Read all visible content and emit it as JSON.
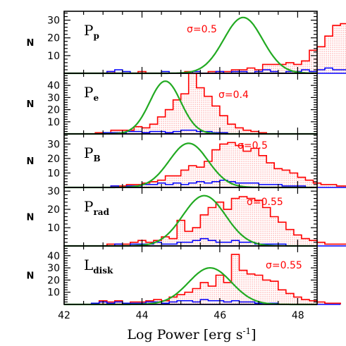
{
  "figure": {
    "xlabel": "Log Power [erg s",
    "xlabel_sup": "-1",
    "xlabel_tail": "]",
    "ylabel": "N",
    "x_tick_labels": [
      "42",
      "44",
      "46",
      "48"
    ],
    "colors": {
      "all_sources": "#ff0000",
      "subsample": "#0000ff",
      "gaussian_fit": "#22aa22",
      "fill": "#ffb0b0",
      "sigma_text": "#ff0000"
    }
  },
  "chart_data": [
    {
      "type": "histogram",
      "panel_label": "P",
      "panel_label_sub": "p",
      "sigma_text": "σ=0.5",
      "xlim": [
        42,
        48.5
      ],
      "ylim": [
        0,
        35
      ],
      "bin_width": 0.2,
      "y_ticks": [
        10,
        20,
        30
      ],
      "y_tick_labels": [
        "10",
        "20",
        "30"
      ],
      "red_hist": {
        "start": 42.9,
        "counts": [
          0,
          1,
          0,
          0,
          0,
          1,
          0,
          0,
          0,
          0,
          0,
          1,
          0,
          0,
          1,
          1,
          1,
          2,
          2,
          3,
          2,
          5,
          5,
          5,
          6,
          5,
          7,
          13,
          15,
          21,
          27,
          28,
          29,
          25,
          23,
          15,
          10,
          7,
          4,
          3,
          2,
          1,
          1
        ]
      },
      "blue_hist": {
        "start": 42.9,
        "counts": [
          0,
          1,
          2,
          1,
          0,
          0,
          0,
          0,
          1,
          0,
          0,
          0,
          1,
          0,
          0,
          1,
          0,
          1,
          1,
          0,
          1,
          2,
          1,
          0,
          1,
          1,
          2,
          1,
          2,
          3,
          2,
          2,
          3,
          3,
          2,
          1,
          1,
          1,
          1,
          1,
          0,
          0,
          0
        ]
      },
      "gaussian": {
        "mu": 46.6,
        "sigma": 0.5,
        "amp": 31.5
      }
    },
    {
      "type": "histogram",
      "panel_label": "P",
      "panel_label_sub": "e",
      "sigma_text": "σ=0.4",
      "xlim": [
        42,
        48.5
      ],
      "ylim": [
        0,
        50
      ],
      "bin_width": 0.2,
      "y_ticks": [
        10,
        20,
        30,
        40
      ],
      "y_tick_labels": [
        "10",
        "20",
        "30",
        "40"
      ],
      "red_hist": {
        "start": 42.6,
        "counts": [
          0,
          1,
          1,
          3,
          3,
          3,
          6,
          5,
          8,
          14,
          20,
          28,
          33,
          50,
          38,
          31,
          23,
          15,
          8,
          5,
          3,
          2,
          1
        ]
      },
      "blue_hist": {
        "start": 42.6,
        "counts": [
          0,
          0,
          1,
          1,
          1,
          2,
          2,
          1,
          2,
          2,
          1,
          2,
          3,
          3,
          2,
          2,
          1,
          1,
          0,
          0,
          0,
          0,
          0
        ]
      },
      "gaussian": {
        "mu": 44.6,
        "sigma": 0.4,
        "amp": 43.5
      }
    },
    {
      "type": "histogram",
      "panel_label": "P",
      "panel_label_sub": "B",
      "sigma_text": "σ=0.5",
      "xlim": [
        42,
        48.5
      ],
      "ylim": [
        0,
        37
      ],
      "bin_width": 0.2,
      "y_ticks": [
        10,
        20,
        30
      ],
      "y_tick_labels": [
        "10",
        "20",
        "30"
      ],
      "red_hist": {
        "start": 43.2,
        "counts": [
          1,
          1,
          2,
          2,
          3,
          4,
          5,
          8,
          8,
          12,
          15,
          14,
          18,
          26,
          30,
          31,
          29,
          25,
          27,
          22,
          17,
          13,
          12,
          10,
          7,
          5,
          3,
          2,
          2,
          1,
          1,
          1,
          0
        ]
      },
      "blue_hist": {
        "start": 43.2,
        "counts": [
          1,
          0,
          1,
          1,
          2,
          2,
          3,
          2,
          3,
          2,
          3,
          4,
          3,
          4,
          5,
          4,
          3,
          3,
          3,
          2,
          2,
          2,
          1,
          1,
          1,
          0,
          0,
          0,
          0,
          0,
          0,
          0,
          0
        ]
      },
      "gaussian": {
        "mu": 45.2,
        "sigma": 0.5,
        "amp": 30.5
      }
    },
    {
      "type": "histogram",
      "panel_label": "P",
      "panel_label_sub": "rad",
      "sigma_text": "σ=0.55",
      "xlim": [
        42,
        48.5
      ],
      "ylim": [
        0,
        32
      ],
      "bin_width": 0.2,
      "y_ticks": [
        10,
        20,
        30
      ],
      "y_tick_labels": [
        "10",
        "20",
        "30"
      ],
      "red_hist": {
        "start": 42.9,
        "counts": [
          0,
          1,
          1,
          1,
          2,
          3,
          2,
          3,
          5,
          4,
          14,
          8,
          10,
          17,
          21,
          24,
          20,
          26,
          27,
          26,
          25,
          21,
          16,
          13,
          9,
          6,
          4,
          3,
          2,
          1,
          1,
          1,
          0,
          0,
          0
        ]
      },
      "blue_hist": {
        "start": 42.9,
        "counts": [
          0,
          0,
          1,
          0,
          1,
          1,
          1,
          2,
          1,
          1,
          2,
          2,
          3,
          4,
          3,
          2,
          2,
          3,
          2,
          2,
          1,
          1,
          1,
          1,
          0,
          0,
          0,
          0,
          0,
          0,
          0,
          0,
          0,
          0,
          0
        ]
      },
      "gaussian": {
        "mu": 45.6,
        "sigma": 0.55,
        "amp": 27.5
      }
    },
    {
      "type": "histogram",
      "panel_label": "L",
      "panel_label_sub": "disk",
      "sigma_text": "σ=0.55",
      "xlim": [
        42,
        48.5
      ],
      "ylim": [
        0,
        48
      ],
      "bin_width": 0.2,
      "y_ticks": [
        10,
        20,
        30,
        40
      ],
      "y_tick_labels": [
        "10",
        "20",
        "30",
        "40"
      ],
      "red_hist": {
        "start": 42.7,
        "counts": [
          1,
          3,
          2,
          3,
          1,
          2,
          2,
          3,
          4,
          3,
          6,
          8,
          10,
          13,
          18,
          15,
          24,
          18,
          41,
          28,
          25,
          24,
          20,
          19,
          12,
          9,
          6,
          4,
          3,
          2,
          1,
          1
        ]
      },
      "blue_hist": {
        "start": 42.7,
        "counts": [
          1,
          2,
          1,
          2,
          1,
          1,
          1,
          2,
          2,
          1,
          2,
          3,
          3,
          2,
          4,
          3,
          3,
          2,
          3,
          2,
          2,
          1,
          1,
          1,
          0,
          0,
          0,
          0,
          0,
          0,
          0,
          0
        ]
      },
      "gaussian": {
        "mu": 45.75,
        "sigma": 0.55,
        "amp": 30
      }
    }
  ]
}
